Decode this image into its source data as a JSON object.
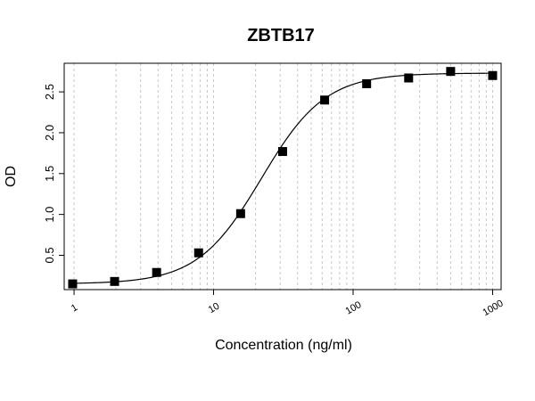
{
  "chart_data": {
    "type": "scatter",
    "title": "ZBTB17",
    "xlabel": "Concentration (ng/ml)",
    "ylabel": "OD",
    "x_scale": "log",
    "xlim": [
      0.85,
      1150
    ],
    "ylim": [
      0.08,
      2.85
    ],
    "grid": "vertical log minor gridlines",
    "x_ticks": [
      {
        "value": 1,
        "label": "1"
      },
      {
        "value": 10,
        "label": "10"
      },
      {
        "value": 100,
        "label": "100"
      },
      {
        "value": 1000,
        "label": "1000"
      }
    ],
    "y_ticks": [
      {
        "value": 0.5,
        "label": "0.5"
      },
      {
        "value": 1.0,
        "label": "1.0"
      },
      {
        "value": 1.5,
        "label": "1.5"
      },
      {
        "value": 2.0,
        "label": "2.0"
      },
      {
        "value": 2.5,
        "label": "2.5"
      }
    ],
    "series": [
      {
        "marker": "square",
        "color": "#000000",
        "x": [
          0.977,
          1.953,
          3.906,
          7.813,
          15.625,
          31.25,
          62.5,
          125,
          250,
          500,
          1000
        ],
        "y": [
          0.15,
          0.18,
          0.29,
          0.53,
          1.01,
          1.77,
          2.4,
          2.6,
          2.67,
          2.75,
          2.7
        ]
      }
    ],
    "fit_curve": {
      "type": "4PL",
      "bottom": 0.15,
      "top": 2.73,
      "ec50": 22,
      "hill": 1.9
    }
  }
}
